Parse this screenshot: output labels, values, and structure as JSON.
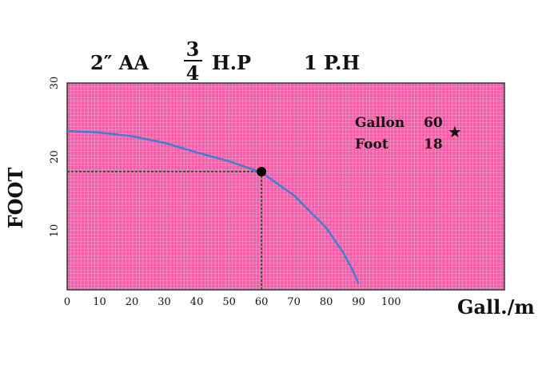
{
  "title": {
    "model": "2″ AA",
    "hp_numerator": "3",
    "hp_denominator": "4",
    "hp_unit": "H.P",
    "phase": "1 P.H"
  },
  "colors": {
    "plot_background": "#f25fa8",
    "grid": "#ffffff",
    "curve": "#3f7fd0",
    "guide": "#2e5d2e",
    "marker": "#000000"
  },
  "chart_data": {
    "type": "line",
    "title": "",
    "xlabel": "Gall./m",
    "ylabel": "FOOT",
    "xlim": [
      0,
      135
    ],
    "ylim": [
      2,
      30
    ],
    "xticks": [
      0,
      10,
      20,
      30,
      40,
      50,
      60,
      70,
      80,
      90,
      100
    ],
    "yticks": [
      10,
      20,
      30
    ],
    "grid": true,
    "series": [
      {
        "x": [
          0,
          10,
          20,
          30,
          40,
          50,
          60,
          70,
          80,
          85,
          88,
          90
        ],
        "y": [
          23.5,
          23.3,
          22.8,
          21.9,
          20.6,
          19.4,
          17.9,
          14.8,
          10.4,
          7.2,
          4.8,
          2.8
        ]
      }
    ],
    "highlight_point": {
      "x": 60,
      "y": 18
    },
    "annotations": [
      {
        "label": "Gallon",
        "value": "60"
      },
      {
        "label": "Foot",
        "value": "18"
      }
    ],
    "annotation_symbol": "★"
  }
}
